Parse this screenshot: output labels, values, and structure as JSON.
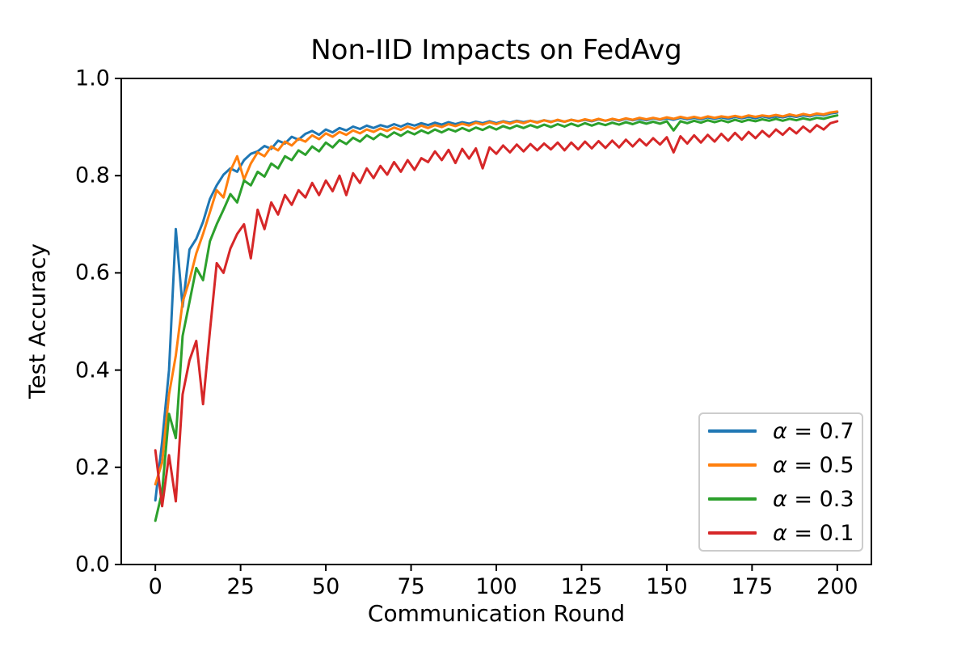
{
  "chart_data": {
    "type": "line",
    "title": "Non-IID Impacts on FedAvg",
    "xlabel": "Communication Round",
    "ylabel": "Test Accuracy",
    "xlim": [
      -10,
      210
    ],
    "ylim": [
      0,
      1
    ],
    "grid": false,
    "legend_position": "lower right",
    "xticks": [
      0,
      25,
      50,
      75,
      100,
      125,
      150,
      175,
      200
    ],
    "yticks": [
      0.0,
      0.2,
      0.4,
      0.6,
      0.8,
      1.0
    ],
    "ytick_labels": [
      "0.0",
      "0.2",
      "0.4",
      "0.6",
      "0.8",
      "1.0"
    ],
    "x_start": 0,
    "x_step": 2,
    "series": [
      {
        "name": "α = 0.7",
        "color": "#1f77b4",
        "values": [
          0.132,
          0.253,
          0.4,
          0.69,
          0.53,
          0.648,
          0.67,
          0.705,
          0.752,
          0.78,
          0.802,
          0.815,
          0.808,
          0.832,
          0.845,
          0.85,
          0.861,
          0.855,
          0.872,
          0.866,
          0.88,
          0.874,
          0.886,
          0.892,
          0.884,
          0.895,
          0.889,
          0.898,
          0.893,
          0.901,
          0.896,
          0.903,
          0.898,
          0.904,
          0.9,
          0.906,
          0.901,
          0.907,
          0.903,
          0.908,
          0.904,
          0.909,
          0.905,
          0.91,
          0.906,
          0.91,
          0.907,
          0.911,
          0.908,
          0.912,
          0.908,
          0.912,
          0.909,
          0.913,
          0.91,
          0.913,
          0.91,
          0.914,
          0.911,
          0.914,
          0.911,
          0.915,
          0.912,
          0.915,
          0.912,
          0.916,
          0.913,
          0.916,
          0.913,
          0.917,
          0.914,
          0.917,
          0.914,
          0.918,
          0.915,
          0.918,
          0.915,
          0.919,
          0.916,
          0.919,
          0.916,
          0.92,
          0.917,
          0.92,
          0.917,
          0.921,
          0.918,
          0.921,
          0.918,
          0.922,
          0.919,
          0.922,
          0.92,
          0.923,
          0.921,
          0.924,
          0.922,
          0.926,
          0.924,
          0.928,
          0.93
        ]
      },
      {
        "name": "α = 0.5",
        "color": "#ff7f0e",
        "values": [
          0.165,
          0.21,
          0.35,
          0.43,
          0.54,
          0.585,
          0.64,
          0.68,
          0.725,
          0.77,
          0.755,
          0.81,
          0.84,
          0.792,
          0.825,
          0.848,
          0.84,
          0.86,
          0.852,
          0.87,
          0.862,
          0.876,
          0.87,
          0.883,
          0.875,
          0.887,
          0.88,
          0.89,
          0.884,
          0.893,
          0.887,
          0.895,
          0.89,
          0.897,
          0.892,
          0.899,
          0.894,
          0.901,
          0.896,
          0.903,
          0.898,
          0.904,
          0.9,
          0.906,
          0.902,
          0.907,
          0.903,
          0.909,
          0.905,
          0.91,
          0.906,
          0.911,
          0.907,
          0.912,
          0.908,
          0.913,
          0.909,
          0.914,
          0.91,
          0.915,
          0.911,
          0.915,
          0.912,
          0.916,
          0.913,
          0.917,
          0.913,
          0.917,
          0.914,
          0.918,
          0.915,
          0.919,
          0.916,
          0.919,
          0.916,
          0.92,
          0.917,
          0.921,
          0.918,
          0.921,
          0.918,
          0.922,
          0.919,
          0.922,
          0.92,
          0.923,
          0.92,
          0.924,
          0.921,
          0.924,
          0.922,
          0.925,
          0.922,
          0.926,
          0.923,
          0.927,
          0.924,
          0.928,
          0.926,
          0.93,
          0.932
        ]
      },
      {
        "name": "α = 0.3",
        "color": "#2ca02c",
        "values": [
          0.09,
          0.15,
          0.31,
          0.26,
          0.47,
          0.54,
          0.61,
          0.585,
          0.665,
          0.7,
          0.73,
          0.762,
          0.745,
          0.79,
          0.78,
          0.808,
          0.798,
          0.825,
          0.815,
          0.84,
          0.832,
          0.852,
          0.843,
          0.86,
          0.85,
          0.868,
          0.858,
          0.873,
          0.865,
          0.878,
          0.87,
          0.883,
          0.875,
          0.886,
          0.879,
          0.889,
          0.882,
          0.891,
          0.885,
          0.893,
          0.887,
          0.895,
          0.889,
          0.896,
          0.891,
          0.898,
          0.892,
          0.899,
          0.894,
          0.901,
          0.895,
          0.902,
          0.897,
          0.903,
          0.898,
          0.904,
          0.899,
          0.905,
          0.9,
          0.906,
          0.901,
          0.907,
          0.902,
          0.908,
          0.903,
          0.908,
          0.904,
          0.909,
          0.905,
          0.91,
          0.906,
          0.911,
          0.907,
          0.911,
          0.907,
          0.912,
          0.893,
          0.912,
          0.908,
          0.913,
          0.909,
          0.914,
          0.91,
          0.914,
          0.91,
          0.915,
          0.911,
          0.915,
          0.912,
          0.916,
          0.913,
          0.917,
          0.913,
          0.917,
          0.914,
          0.918,
          0.915,
          0.919,
          0.917,
          0.921,
          0.924
        ]
      },
      {
        "name": "α = 0.1",
        "color": "#d62728",
        "values": [
          0.235,
          0.12,
          0.225,
          0.13,
          0.35,
          0.42,
          0.46,
          0.33,
          0.48,
          0.62,
          0.6,
          0.65,
          0.68,
          0.7,
          0.63,
          0.73,
          0.69,
          0.745,
          0.72,
          0.76,
          0.74,
          0.77,
          0.755,
          0.785,
          0.76,
          0.79,
          0.768,
          0.8,
          0.76,
          0.805,
          0.785,
          0.815,
          0.795,
          0.82,
          0.802,
          0.828,
          0.808,
          0.832,
          0.812,
          0.836,
          0.828,
          0.85,
          0.832,
          0.853,
          0.826,
          0.855,
          0.835,
          0.856,
          0.815,
          0.858,
          0.845,
          0.862,
          0.848,
          0.864,
          0.85,
          0.865,
          0.852,
          0.866,
          0.854,
          0.868,
          0.852,
          0.868,
          0.854,
          0.87,
          0.856,
          0.871,
          0.857,
          0.872,
          0.858,
          0.874,
          0.86,
          0.875,
          0.862,
          0.877,
          0.864,
          0.879,
          0.848,
          0.881,
          0.866,
          0.883,
          0.868,
          0.884,
          0.87,
          0.886,
          0.872,
          0.888,
          0.874,
          0.89,
          0.877,
          0.892,
          0.88,
          0.895,
          0.884,
          0.898,
          0.887,
          0.901,
          0.89,
          0.904,
          0.895,
          0.908,
          0.912
        ]
      }
    ]
  },
  "legend": {
    "items": [
      {
        "symbol": "α",
        "rest": " = 0.7",
        "color": "#1f77b4"
      },
      {
        "symbol": "α",
        "rest": " = 0.5",
        "color": "#ff7f0e"
      },
      {
        "symbol": "α",
        "rest": " = 0.3",
        "color": "#2ca02c"
      },
      {
        "symbol": "α",
        "rest": " = 0.1",
        "color": "#d62728"
      }
    ]
  },
  "style_colors": {
    "axes_edge": "#000000",
    "text": "#000000",
    "legend_border": "#cccccc",
    "background": "#ffffff"
  }
}
